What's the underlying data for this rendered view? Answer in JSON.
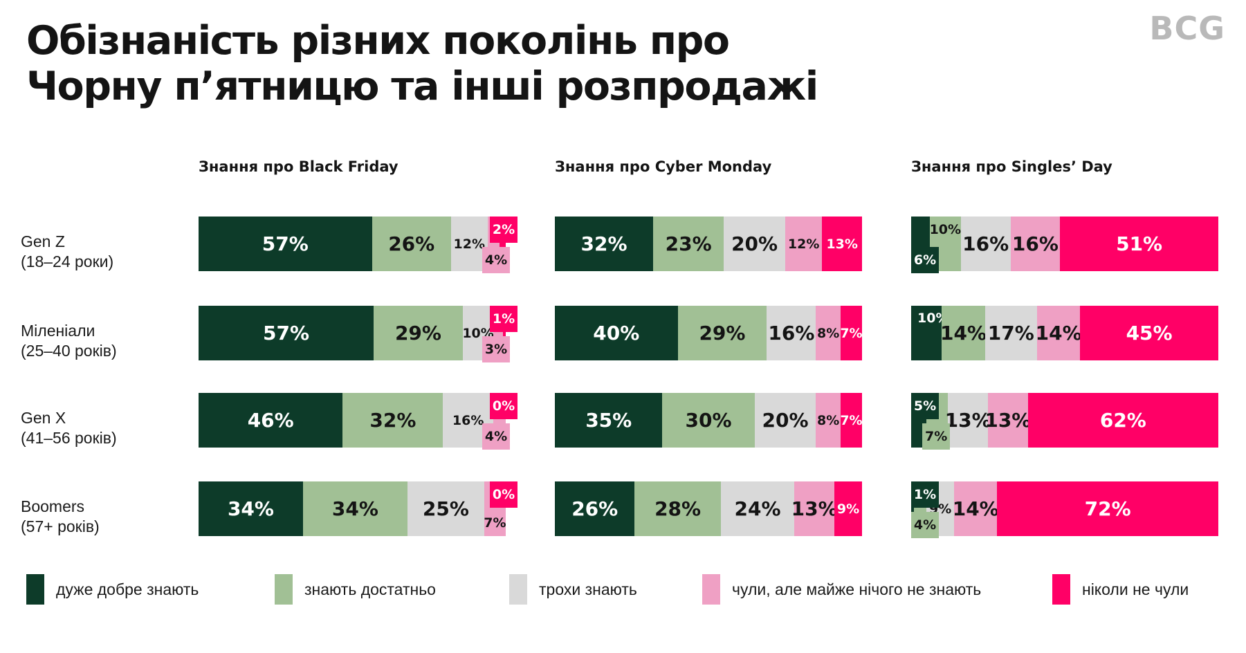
{
  "title": {
    "line1": "Обізнаність різних поколінь про",
    "line2": "Чорну п’ятницю та інші розпродажі"
  },
  "logo_text": "BCG",
  "colors": {
    "very_well": "#0d3b29",
    "know_enough": "#a1c095",
    "know_little": "#d9d9d9",
    "heard_almost_nothing": "#efa0c4",
    "never_heard": "#ff0066",
    "text_dark": "#141414",
    "text_light": "#ffffff",
    "logo_gray": "#b9b9b9"
  },
  "legend": [
    {
      "label": "дуже добре знають",
      "color_key": "very_well"
    },
    {
      "label": "знають достатньо",
      "color_key": "know_enough"
    },
    {
      "label": "трохи знають",
      "color_key": "know_little"
    },
    {
      "label": "чули, але майже нічого не знають",
      "color_key": "heard_almost_nothing"
    },
    {
      "label": "ніколи не чули",
      "color_key": "never_heard"
    }
  ],
  "rows": [
    {
      "line1": "Gen Z",
      "line2": "(18–24 роки)"
    },
    {
      "line1": "Міленіали",
      "line2": "(25–40 років)"
    },
    {
      "line1": "Gen X",
      "line2": "(41–56 років)"
    },
    {
      "line1": "Boomers",
      "line2": "(57+ років)"
    }
  ],
  "chart_data": {
    "type": "bar",
    "variant": "stacked-horizontal-percent",
    "unit": "%",
    "categories": [
      "Gen Z (18–24 роки)",
      "Міленіали (25–40 років)",
      "Gen X (41–56 років)",
      "Boomers (57+ років)"
    ],
    "series_names": [
      "дуже добре знають",
      "знають достатньо",
      "трохи знають",
      "чули, але майже нічого не знають",
      "ніколи не чули"
    ],
    "legend_position": "bottom",
    "panels": [
      {
        "title": "Знання про Black Friday",
        "rows": [
          [
            {
              "v": 57,
              "m": "c"
            },
            {
              "v": 26,
              "m": "c"
            },
            {
              "v": 12,
              "m": "m"
            },
            {
              "v": 4,
              "m": "bw"
            },
            {
              "v": 2,
              "m": "ba"
            }
          ],
          [
            {
              "v": 57,
              "m": "c"
            },
            {
              "v": 29,
              "m": "c"
            },
            {
              "v": 10,
              "m": "m"
            },
            {
              "v": 3,
              "m": "bw"
            },
            {
              "v": 1,
              "m": "ba"
            }
          ],
          [
            {
              "v": 46,
              "m": "c"
            },
            {
              "v": 32,
              "m": "c"
            },
            {
              "v": 16,
              "m": "m"
            },
            {
              "v": 4,
              "m": "bw"
            },
            {
              "v": 0,
              "m": "ba"
            }
          ],
          [
            {
              "v": 34,
              "m": "c"
            },
            {
              "v": 34,
              "m": "c"
            },
            {
              "v": 25,
              "m": "c"
            },
            {
              "v": 7,
              "m": "ib"
            },
            {
              "v": 0,
              "m": "ba"
            }
          ]
        ]
      },
      {
        "title": "Знання про Cyber Monday",
        "rows": [
          [
            {
              "v": 32,
              "m": "c"
            },
            {
              "v": 23,
              "m": "c"
            },
            {
              "v": 20,
              "m": "c"
            },
            {
              "v": 12,
              "m": "m"
            },
            {
              "v": 13,
              "m": "m"
            }
          ],
          [
            {
              "v": 40,
              "m": "c"
            },
            {
              "v": 29,
              "m": "c"
            },
            {
              "v": 16,
              "m": "c"
            },
            {
              "v": 8,
              "m": "m"
            },
            {
              "v": 7,
              "m": "m"
            }
          ],
          [
            {
              "v": 35,
              "m": "c"
            },
            {
              "v": 30,
              "m": "c"
            },
            {
              "v": 20,
              "m": "c"
            },
            {
              "v": 8,
              "m": "m"
            },
            {
              "v": 7,
              "m": "m"
            }
          ],
          [
            {
              "v": 26,
              "m": "c"
            },
            {
              "v": 28,
              "m": "c"
            },
            {
              "v": 24,
              "m": "c"
            },
            {
              "v": 13,
              "m": "c"
            },
            {
              "v": 9,
              "m": "m"
            }
          ]
        ]
      },
      {
        "title": "Знання про Singles’ Day",
        "rows": [
          [
            {
              "v": 6,
              "m": "bb"
            },
            {
              "v": 10,
              "m": "it"
            },
            {
              "v": 16,
              "m": "c"
            },
            {
              "v": 16,
              "m": "c"
            },
            {
              "v": 51,
              "m": "c"
            }
          ],
          [
            {
              "v": 10,
              "m": "itl"
            },
            {
              "v": 14,
              "m": "c"
            },
            {
              "v": 17,
              "m": "c"
            },
            {
              "v": 14,
              "m": "c"
            },
            {
              "v": 45,
              "m": "c"
            }
          ],
          [
            {
              "v": 5,
              "m": "bt"
            },
            {
              "v": 7,
              "m": "bb"
            },
            {
              "v": 13,
              "m": "c"
            },
            {
              "v": 13,
              "m": "c"
            },
            {
              "v": 62,
              "m": "c"
            }
          ],
          [
            {
              "v": 1,
              "m": "bt"
            },
            {
              "v": 4,
              "m": "bb"
            },
            {
              "v": 9,
              "m": "m"
            },
            {
              "v": 14,
              "m": "c"
            },
            {
              "v": 72,
              "m": "c"
            }
          ]
        ]
      }
    ]
  }
}
